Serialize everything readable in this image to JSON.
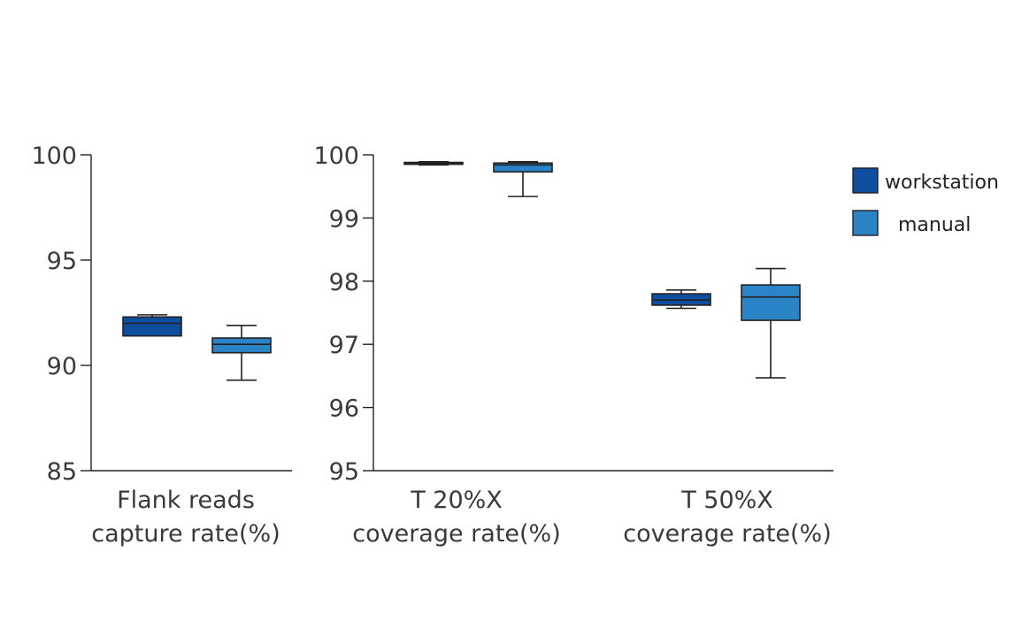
{
  "chart_data": [
    {
      "type": "box",
      "categories": [
        "Flank reads\ncapture rate(%)"
      ],
      "ylim": [
        85,
        100
      ],
      "yticks": [
        85,
        90,
        95,
        100
      ],
      "series": [
        {
          "name": "workstation",
          "color": "#0e4e9e",
          "boxes": [
            {
              "min": 91.4,
              "q1": 91.4,
              "median": 92.0,
              "q3": 92.3,
              "max": 92.4
            }
          ]
        },
        {
          "name": "manual",
          "color": "#2b84c6",
          "boxes": [
            {
              "min": 89.3,
              "q1": 90.6,
              "median": 91.0,
              "q3": 91.3,
              "max": 91.9
            }
          ]
        }
      ]
    },
    {
      "type": "box",
      "categories": [
        "T 20%X\ncoverage rate(%)",
        "T 50%X\ncoverage rate(%)"
      ],
      "ylim": [
        95,
        100
      ],
      "yticks": [
        95,
        96,
        97,
        98,
        99,
        100
      ],
      "series": [
        {
          "name": "workstation",
          "color": "#0e4e9e",
          "boxes": [
            {
              "min": 99.84,
              "q1": 99.85,
              "median": 99.87,
              "q3": 99.88,
              "max": 99.89
            },
            {
              "min": 97.57,
              "q1": 97.62,
              "median": 97.7,
              "q3": 97.8,
              "max": 97.86
            }
          ]
        },
        {
          "name": "manual",
          "color": "#2b84c6",
          "boxes": [
            {
              "min": 99.34,
              "q1": 99.73,
              "median": 99.84,
              "q3": 99.87,
              "max": 99.89
            },
            {
              "min": 96.47,
              "q1": 97.38,
              "median": 97.75,
              "q3": 97.94,
              "max": 98.2
            }
          ]
        }
      ]
    }
  ],
  "legend": {
    "items": [
      {
        "label": "workstation",
        "color": "#0e4e9e"
      },
      {
        "label": "manual",
        "color": "#2b84c6"
      }
    ]
  }
}
